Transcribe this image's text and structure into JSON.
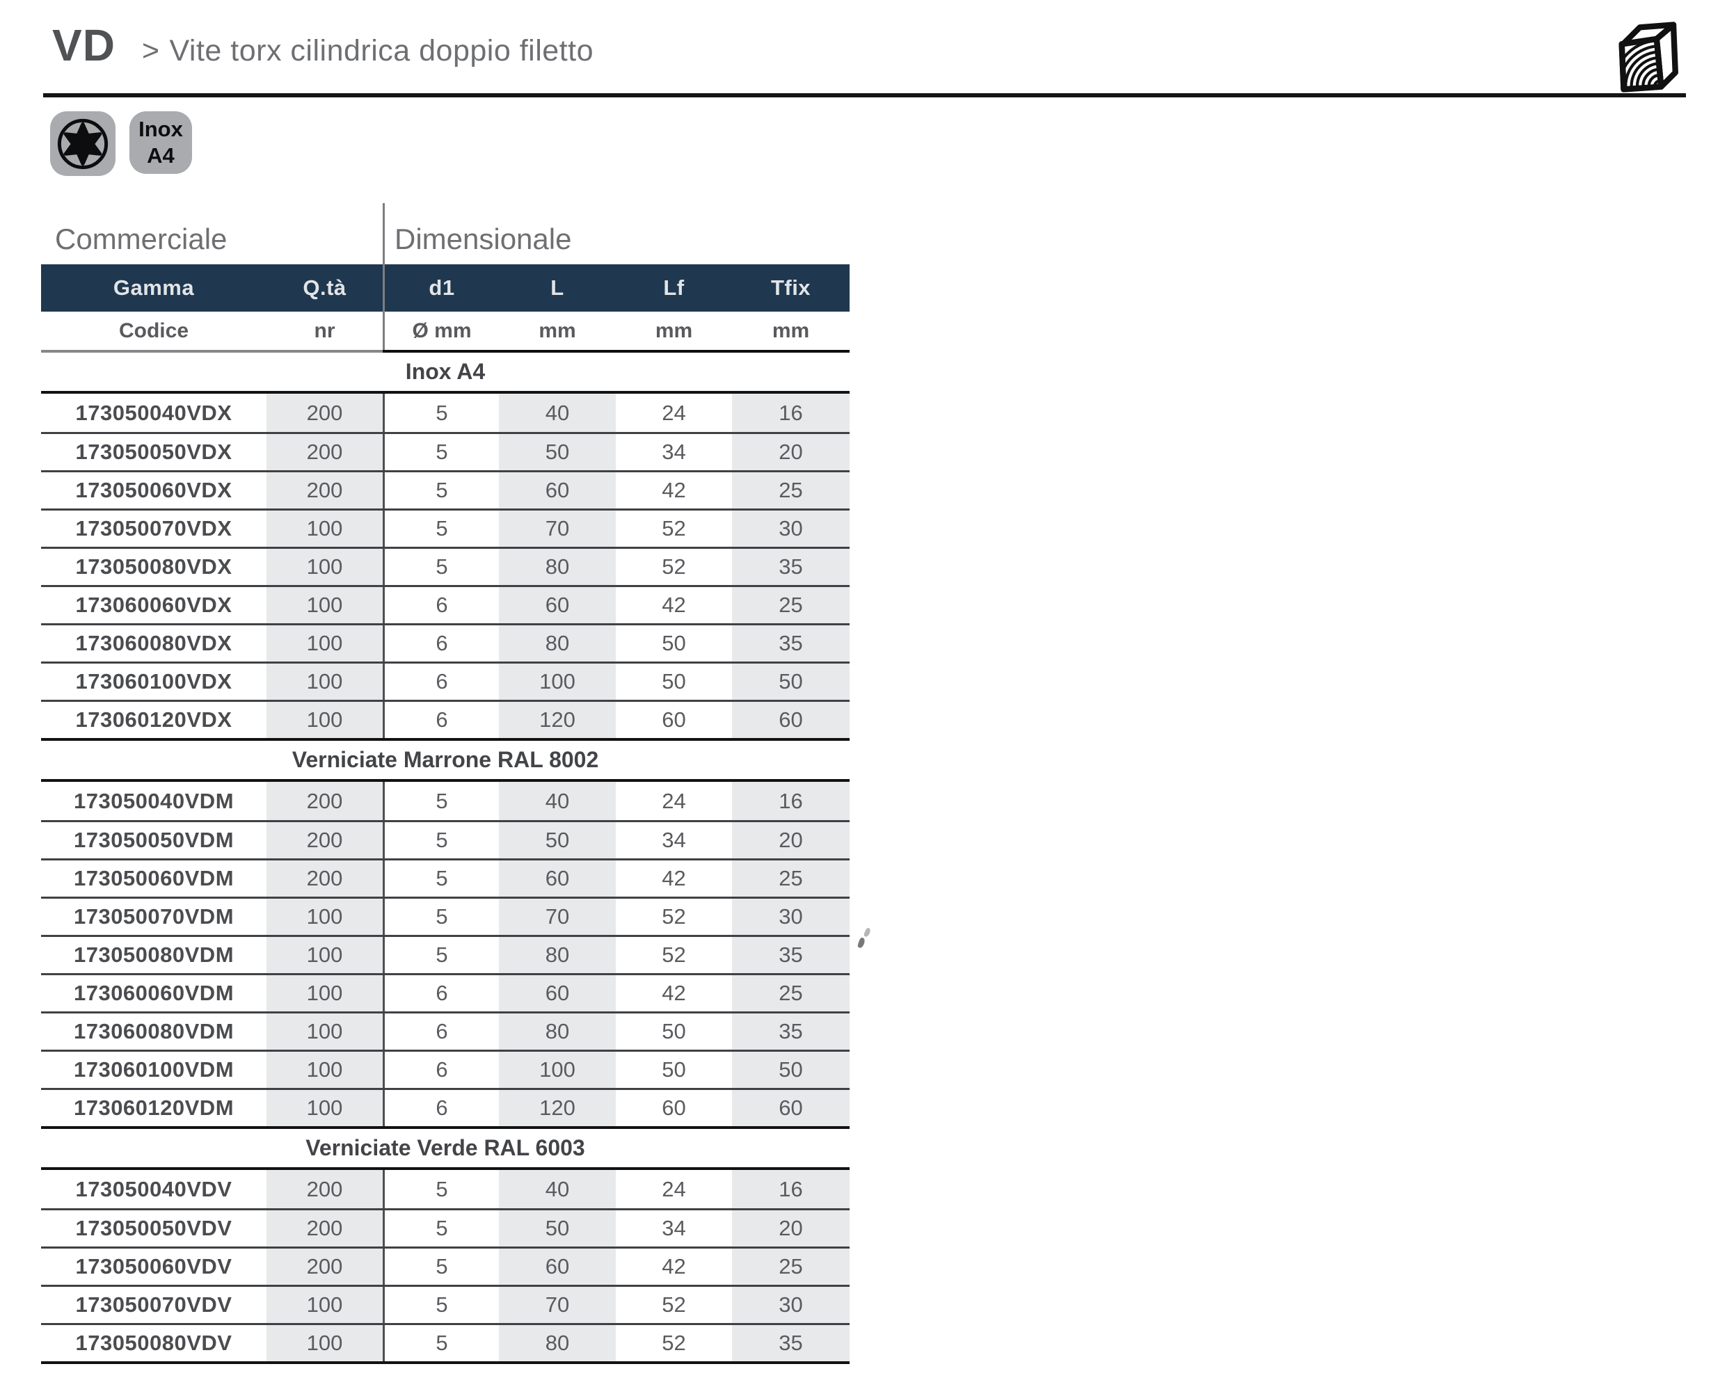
{
  "header": {
    "code": "VD",
    "arrow": ">",
    "title": "Vite torx cilindrica doppio filetto"
  },
  "badges": {
    "torx_icon": "torx-drive-icon",
    "inox_line1": "Inox",
    "inox_line2": "A4"
  },
  "logo_icon": "wood-block-logo-icon",
  "table": {
    "group_headers": {
      "commerciale": "Commerciale",
      "dimensionale": "Dimensionale"
    },
    "columns": [
      {
        "key": "codice",
        "header": "Gamma",
        "subheader": "Codice"
      },
      {
        "key": "qta",
        "header": "Q.tà",
        "subheader": "nr"
      },
      {
        "key": "d1",
        "header": "d1",
        "subheader": "Ø mm"
      },
      {
        "key": "L",
        "header": "L",
        "subheader": "mm"
      },
      {
        "key": "Lf",
        "header": "Lf",
        "subheader": "mm"
      },
      {
        "key": "Tfix",
        "header": "Tfix",
        "subheader": "mm"
      }
    ],
    "sections": [
      {
        "title": "Inox A4",
        "rows": [
          [
            "173050040VDX",
            "200",
            "5",
            "40",
            "24",
            "16"
          ],
          [
            "173050050VDX",
            "200",
            "5",
            "50",
            "34",
            "20"
          ],
          [
            "173050060VDX",
            "200",
            "5",
            "60",
            "42",
            "25"
          ],
          [
            "173050070VDX",
            "100",
            "5",
            "70",
            "52",
            "30"
          ],
          [
            "173050080VDX",
            "100",
            "5",
            "80",
            "52",
            "35"
          ],
          [
            "173060060VDX",
            "100",
            "6",
            "60",
            "42",
            "25"
          ],
          [
            "173060080VDX",
            "100",
            "6",
            "80",
            "50",
            "35"
          ],
          [
            "173060100VDX",
            "100",
            "6",
            "100",
            "50",
            "50"
          ],
          [
            "173060120VDX",
            "100",
            "6",
            "120",
            "60",
            "60"
          ]
        ]
      },
      {
        "title": "Verniciate Marrone RAL 8002",
        "rows": [
          [
            "173050040VDM",
            "200",
            "5",
            "40",
            "24",
            "16"
          ],
          [
            "173050050VDM",
            "200",
            "5",
            "50",
            "34",
            "20"
          ],
          [
            "173050060VDM",
            "200",
            "5",
            "60",
            "42",
            "25"
          ],
          [
            "173050070VDM",
            "100",
            "5",
            "70",
            "52",
            "30"
          ],
          [
            "173050080VDM",
            "100",
            "5",
            "80",
            "52",
            "35"
          ],
          [
            "173060060VDM",
            "100",
            "6",
            "60",
            "42",
            "25"
          ],
          [
            "173060080VDM",
            "100",
            "6",
            "80",
            "50",
            "35"
          ],
          [
            "173060100VDM",
            "100",
            "6",
            "100",
            "50",
            "50"
          ],
          [
            "173060120VDM",
            "100",
            "6",
            "120",
            "60",
            "60"
          ]
        ]
      },
      {
        "title": "Verniciate Verde RAL 6003",
        "rows": [
          [
            "173050040VDV",
            "200",
            "5",
            "40",
            "24",
            "16"
          ],
          [
            "173050050VDV",
            "200",
            "5",
            "50",
            "34",
            "20"
          ],
          [
            "173050060VDV",
            "200",
            "5",
            "60",
            "42",
            "25"
          ],
          [
            "173050070VDV",
            "100",
            "5",
            "70",
            "52",
            "30"
          ],
          [
            "173050080VDV",
            "100",
            "5",
            "80",
            "52",
            "35"
          ]
        ]
      }
    ]
  },
  "colors": {
    "header_navy": "#1f3850",
    "column_shade_gray": "#e8e9ea",
    "badge_gray": "#a9abae",
    "text_dark_gray": "#4b4c4f",
    "text_medium_gray": "#5a5b5e",
    "title_gray": "#6e6f72",
    "line_black": "#121212",
    "line_gray": "#85878b"
  }
}
